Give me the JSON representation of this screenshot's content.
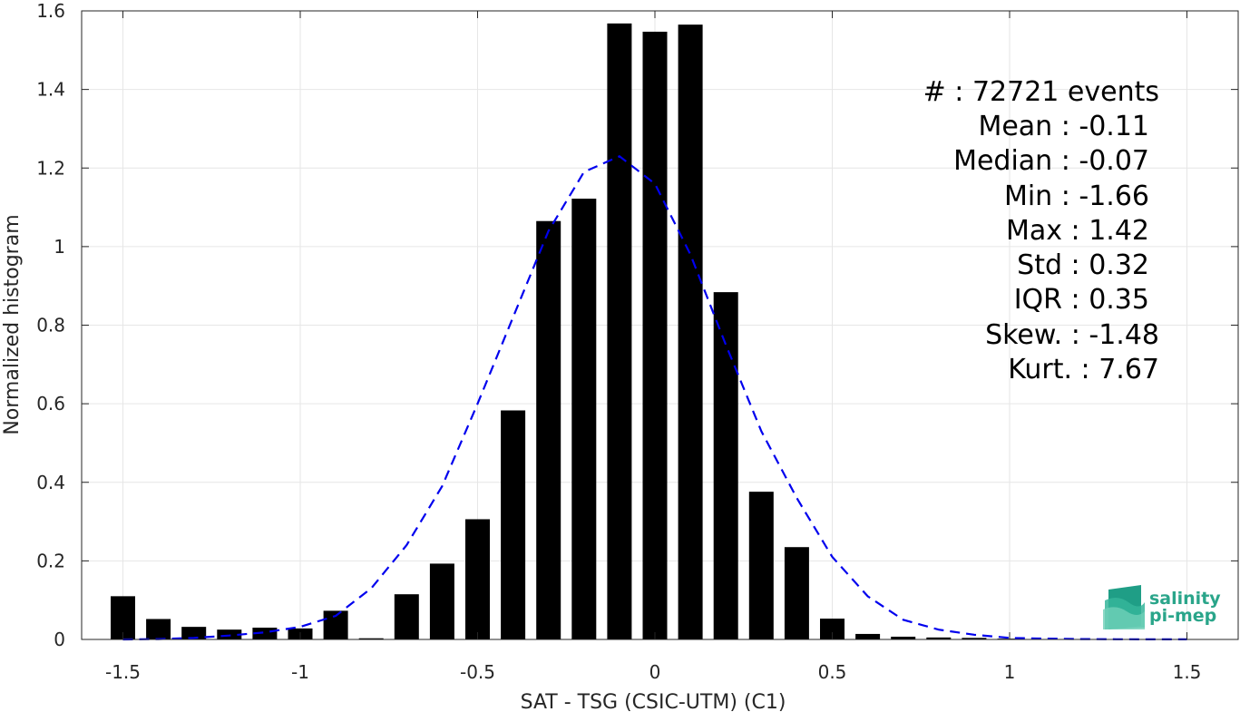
{
  "chart_data": {
    "type": "bar",
    "xlabel": "SAT - TSG (CSIC-UTM) (C1)",
    "ylabel": "Normalized histogram",
    "xlim": [
      -1.55,
      1.6
    ],
    "ylim": [
      0,
      1.6
    ],
    "xticks": [
      -1.5,
      -1,
      -0.5,
      0,
      0.5,
      1,
      1.5
    ],
    "xtick_labels": [
      "-1.5",
      "-1",
      "-0.5",
      "0",
      "0.5",
      "1",
      "1.5"
    ],
    "yticks": [
      0,
      0.2,
      0.4,
      0.6,
      0.8,
      1,
      1.2,
      1.4,
      1.6
    ],
    "ytick_labels": [
      "0",
      "0.2",
      "0.4",
      "0.6",
      "0.8",
      "1",
      "1.2",
      "1.4",
      "1.6"
    ],
    "grid": true,
    "bin_centers": [
      -1.5,
      -1.4,
      -1.3,
      -1.2,
      -1.1,
      -1.0,
      -0.9,
      -0.8,
      -0.7,
      -0.6,
      -0.5,
      -0.4,
      -0.3,
      -0.2,
      -0.1,
      0.0,
      0.1,
      0.2,
      0.3,
      0.4,
      0.5,
      0.6,
      0.7,
      0.8,
      0.9,
      1.0,
      1.1,
      1.2,
      1.3,
      1.4,
      1.5
    ],
    "values": [
      0.11,
      0.052,
      0.032,
      0.025,
      0.03,
      0.028,
      0.073,
      0.003,
      0.115,
      0.193,
      0.306,
      0.583,
      1.065,
      1.122,
      1.568,
      1.547,
      1.565,
      0.884,
      0.376,
      0.235,
      0.053,
      0.014,
      0.007,
      0.005,
      0.004,
      0.002,
      0.001,
      0.001,
      0.0005,
      0.0005,
      0.0
    ],
    "bar_color": "#000000",
    "fit_curve": {
      "style": "dashed",
      "color": "#0000ee",
      "x": [
        -1.5,
        -1.4,
        -1.3,
        -1.2,
        -1.1,
        -1.0,
        -0.9,
        -0.8,
        -0.7,
        -0.6,
        -0.5,
        -0.4,
        -0.3,
        -0.2,
        -0.1,
        0.0,
        0.1,
        0.2,
        0.3,
        0.4,
        0.5,
        0.6,
        0.7,
        0.8,
        0.9,
        1.0,
        1.1,
        1.2,
        1.3,
        1.4,
        1.5
      ],
      "y": [
        0.0,
        0.001,
        0.004,
        0.01,
        0.018,
        0.032,
        0.06,
        0.13,
        0.24,
        0.39,
        0.6,
        0.82,
        1.04,
        1.19,
        1.23,
        1.16,
        0.98,
        0.75,
        0.53,
        0.36,
        0.21,
        0.11,
        0.05,
        0.025,
        0.012,
        0.004,
        0.002,
        0.001,
        0.0005,
        0.0003,
        0.0002
      ]
    },
    "stats_lines": [
      "#  : 72721 events",
      "Mean : -0.11",
      "Median : -0.07",
      "Min : -1.66",
      "Max : 1.42",
      "Std : 0.32",
      "IQR : 0.35",
      "Skew. : -1.48",
      "Kurt. : 7.67"
    ]
  },
  "logo": {
    "line1": "salinity",
    "line2": "pi-mep"
  }
}
